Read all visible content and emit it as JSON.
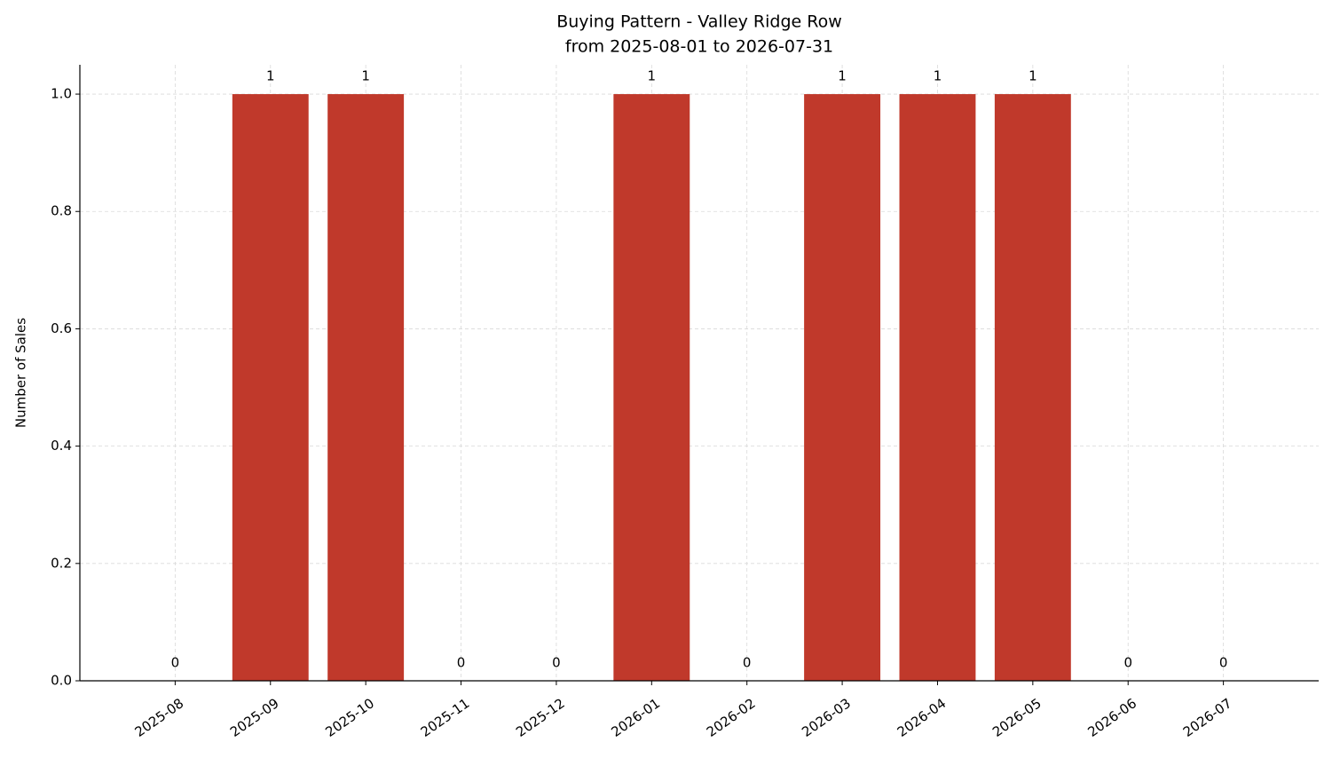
{
  "chart_data": {
    "type": "bar",
    "title": "Buying Pattern - Valley Ridge Row",
    "subtitle": "from 2025-08-01 to 2026-07-31",
    "y_label": "Number of Sales",
    "categories": [
      "2025-08",
      "2025-09",
      "2025-10",
      "2025-11",
      "2025-12",
      "2026-01",
      "2026-02",
      "2026-03",
      "2026-04",
      "2026-05",
      "2026-06",
      "2026-07"
    ],
    "values": [
      0,
      1,
      1,
      0,
      0,
      1,
      0,
      1,
      1,
      1,
      0,
      0
    ],
    "color": "#c0392b",
    "ylim": [
      0,
      1.05
    ],
    "yticks": [
      {
        "value": 0,
        "label": "0.0"
      },
      0.2,
      0.4,
      0.6,
      0.8,
      {
        "value": 1,
        "label": "1.0"
      }
    ],
    "grid": true
  }
}
